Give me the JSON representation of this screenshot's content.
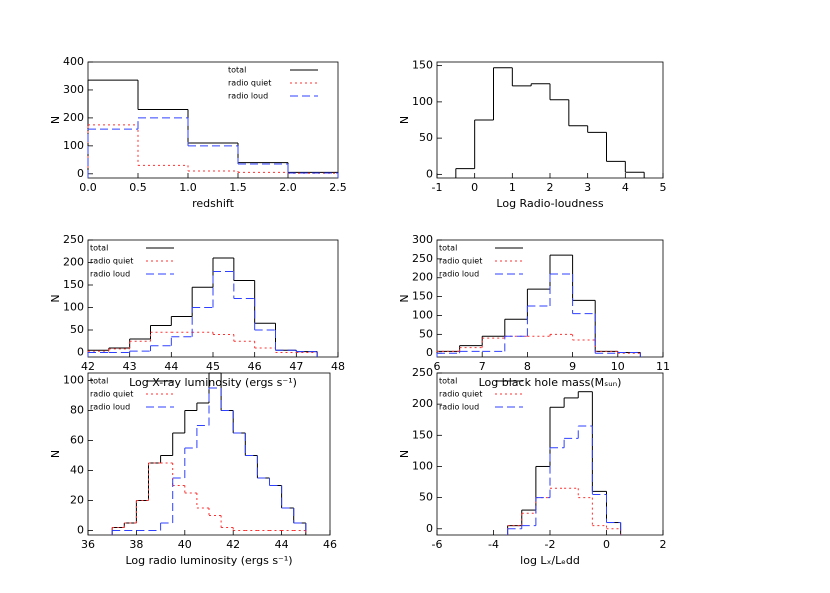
{
  "chart_data": [
    {
      "type": "histogram",
      "xlabel": "redshift",
      "ylabel": "N",
      "xlim": [
        0,
        2.5
      ],
      "ylim": [
        -15,
        400
      ],
      "xticks": [
        {
          "value": 0,
          "label": "0.0"
        },
        0.5,
        {
          "value": 1,
          "label": "1.0"
        },
        1.5,
        {
          "value": 2,
          "label": "2.0"
        },
        2.5
      ],
      "yticks": [
        0,
        100,
        200,
        300,
        400
      ],
      "legend": "upper right",
      "bins": [
        0,
        0.5,
        1,
        1.5,
        2,
        2.5
      ],
      "series": [
        {
          "name": "total",
          "color": "#000000",
          "linestyle": "solid",
          "values": [
            335,
            230,
            110,
            40,
            5
          ]
        },
        {
          "name": "radio quiet",
          "color": "#ff3030",
          "linestyle": "dotted",
          "values": [
            175,
            30,
            10,
            5,
            2
          ]
        },
        {
          "name": "radio loud",
          "color": "#3040ff",
          "linestyle": "dashed",
          "values": [
            160,
            200,
            100,
            35,
            3
          ]
        }
      ]
    },
    {
      "type": "histogram",
      "xlabel": "Log Radio-loudness",
      "ylabel": "N",
      "xlim": [
        -1,
        5
      ],
      "ylim": [
        -5,
        155
      ],
      "xticks": [
        -1,
        0,
        1,
        2,
        3,
        4,
        5
      ],
      "yticks": [
        0,
        50,
        100,
        150
      ],
      "bins": [
        -0.5,
        0,
        0.5,
        1,
        1.5,
        2,
        2.5,
        3,
        3.5,
        4,
        4.5
      ],
      "values": [
        8,
        75,
        147,
        122,
        125,
        103,
        67,
        58,
        18,
        3
      ],
      "color": "#000000"
    },
    {
      "type": "histogram",
      "xlabel": "Log X-ray luminosity (ergs s⁻¹)",
      "ylabel": "N",
      "xlim": [
        42,
        48
      ],
      "ylim": [
        -10,
        250
      ],
      "xticks": [
        42,
        43,
        44,
        45,
        46,
        47,
        48
      ],
      "yticks": [
        0,
        50,
        100,
        150,
        200,
        250
      ],
      "legend": "upper left",
      "bins": [
        42,
        42.5,
        43,
        43.5,
        44,
        44.5,
        45,
        45.5,
        46,
        46.5,
        47,
        47.5
      ],
      "series": [
        {
          "name": "total",
          "color": "#000000",
          "linestyle": "solid",
          "values": [
            5,
            10,
            30,
            60,
            80,
            145,
            210,
            160,
            65,
            5,
            2
          ]
        },
        {
          "name": "radio quiet",
          "color": "#ff3030",
          "linestyle": "dotted",
          "values": [
            3,
            8,
            25,
            45,
            45,
            45,
            40,
            25,
            10,
            0,
            0
          ]
        },
        {
          "name": "radio loud",
          "color": "#3040ff",
          "linestyle": "dashed",
          "values": [
            0,
            0,
            3,
            15,
            35,
            100,
            180,
            120,
            50,
            5,
            2
          ]
        }
      ]
    },
    {
      "type": "histogram",
      "xlabel": "Log black hole mass(Mₛᵤₙ)",
      "ylabel": "N",
      "xlim": [
        6,
        11
      ],
      "ylim": [
        -10,
        300
      ],
      "xticks": [
        6,
        7,
        8,
        9,
        10,
        11
      ],
      "yticks": [
        0,
        50,
        100,
        150,
        200,
        250,
        300
      ],
      "legend": "upper left",
      "bins": [
        6,
        6.5,
        7,
        7.5,
        8,
        8.5,
        9,
        9.5,
        10,
        10.5
      ],
      "series": [
        {
          "name": "total",
          "color": "#000000",
          "linestyle": "solid",
          "values": [
            5,
            20,
            45,
            90,
            170,
            260,
            140,
            5,
            2
          ]
        },
        {
          "name": "radio quiet",
          "color": "#ff3030",
          "linestyle": "dotted",
          "values": [
            5,
            15,
            40,
            45,
            45,
            50,
            35,
            5,
            0
          ]
        },
        {
          "name": "radio loud",
          "color": "#3040ff",
          "linestyle": "dashed",
          "values": [
            0,
            5,
            5,
            45,
            125,
            210,
            105,
            0,
            2
          ]
        }
      ]
    },
    {
      "type": "histogram",
      "xlabel": "Log radio luminosity (ergs s⁻¹)",
      "ylabel": "N",
      "xlim": [
        36,
        46
      ],
      "ylim": [
        -3,
        105
      ],
      "xticks": [
        36,
        38,
        40,
        42,
        44,
        46
      ],
      "yticks": [
        0,
        20,
        40,
        60,
        80,
        100
      ],
      "legend": "upper left",
      "bins": [
        37,
        37.5,
        38,
        38.5,
        39,
        39.5,
        40,
        40.5,
        41,
        41.5,
        42,
        42.5,
        43,
        43.5,
        44,
        44.5,
        45
      ],
      "series": [
        {
          "name": "total",
          "color": "#000000",
          "linestyle": "solid",
          "values": [
            2,
            5,
            20,
            45,
            50,
            65,
            80,
            85,
            105,
            80,
            65,
            50,
            35,
            30,
            15,
            5
          ]
        },
        {
          "name": "radio quiet",
          "color": "#ff3030",
          "linestyle": "dotted",
          "values": [
            2,
            5,
            20,
            45,
            45,
            30,
            25,
            15,
            10,
            2,
            0,
            0,
            0,
            0,
            0,
            0
          ]
        },
        {
          "name": "radio loud",
          "color": "#3040ff",
          "linestyle": "dashed",
          "values": [
            0,
            0,
            0,
            0,
            5,
            35,
            55,
            70,
            95,
            80,
            65,
            50,
            35,
            30,
            15,
            5
          ]
        }
      ]
    },
    {
      "type": "histogram",
      "xlabel": "log Lₓ/Lₑdd",
      "ylabel": "N",
      "xlim": [
        -6,
        2
      ],
      "ylim": [
        -10,
        250
      ],
      "xticks": [
        -6,
        -4,
        -2,
        0,
        2
      ],
      "yticks": [
        0,
        50,
        100,
        150,
        200,
        250
      ],
      "legend": "upper left",
      "bins": [
        -3.5,
        -3,
        -2.5,
        -2,
        -1.5,
        -1,
        -0.5,
        0,
        0.5
      ],
      "series": [
        {
          "name": "total",
          "color": "#000000",
          "linestyle": "solid",
          "values": [
            5,
            30,
            100,
            195,
            210,
            220,
            60,
            10
          ]
        },
        {
          "name": "radio quiet",
          "color": "#ff3030",
          "linestyle": "dotted",
          "values": [
            5,
            25,
            50,
            65,
            65,
            50,
            5,
            0
          ]
        },
        {
          "name": "radio loud",
          "color": "#3040ff",
          "linestyle": "dashed",
          "values": [
            0,
            5,
            50,
            130,
            145,
            165,
            55,
            10
          ]
        }
      ]
    }
  ]
}
